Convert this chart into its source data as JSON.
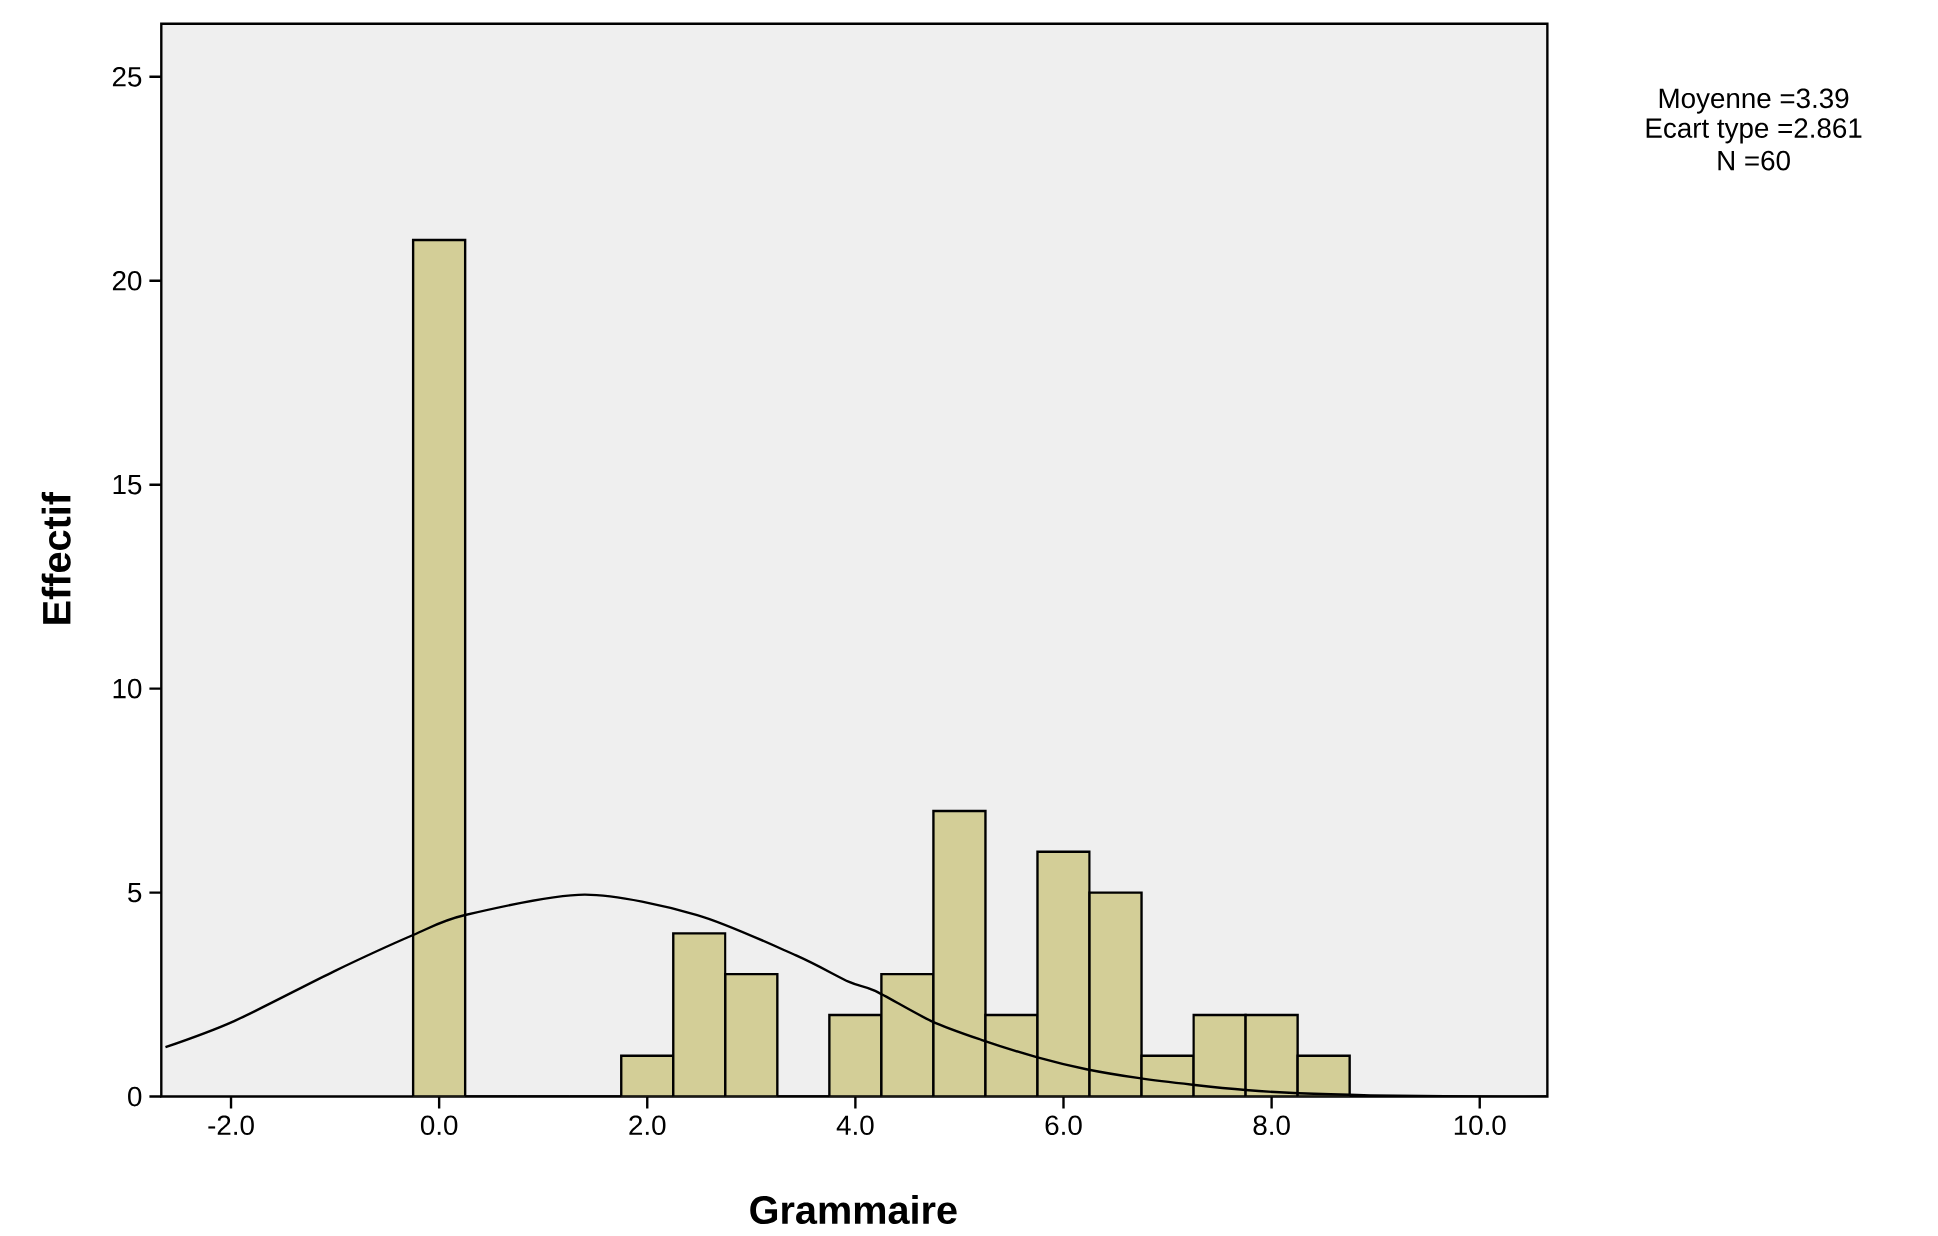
{
  "chart_data": {
    "type": "histogram",
    "xlabel": "Grammaire",
    "ylabel": "Effectif",
    "bins": [
      -0.25,
      0.25,
      0.75,
      1.25,
      1.75,
      2.25,
      2.75,
      3.25,
      3.75,
      4.25,
      4.75,
      5.25,
      5.75,
      6.25,
      6.75,
      7.25,
      7.75,
      8.25,
      8.75
    ],
    "values": [
      21,
      0,
      0,
      0,
      1,
      4,
      3,
      0,
      2,
      3,
      7,
      2,
      6,
      5,
      1,
      2,
      2,
      1
    ],
    "color": "#d3ce97",
    "series": [
      {
        "type": "line",
        "color": "#000000",
        "x": [
          -2.63,
          -1.97,
          -1.01,
          -0.25,
          0.25,
          1.4,
          2.48,
          3.43,
          3.94,
          4.19,
          4.73,
          5.21,
          5.75,
          6.22,
          6.73,
          7.24,
          7.75,
          8.26,
          8.95,
          9.9,
          10.64
        ],
        "values": [
          1.21,
          1.85,
          3.07,
          3.96,
          4.45,
          4.95,
          4.45,
          3.46,
          2.81,
          2.59,
          1.85,
          1.39,
          0.96,
          0.67,
          0.45,
          0.29,
          0.16,
          0.08,
          0.03,
          0,
          0
        ]
      }
    ],
    "xlim": [
      -2.67,
      10.65
    ],
    "ylim": [
      0,
      26.3
    ],
    "xticks": [
      {
        "value": -2,
        "label": "-2.0"
      },
      {
        "value": 0,
        "label": "0.0"
      },
      {
        "value": 2,
        "label": "2.0"
      },
      {
        "value": 4,
        "label": "4.0"
      },
      {
        "value": 6,
        "label": "6.0"
      },
      {
        "value": 8,
        "label": "8.0"
      },
      {
        "value": 10,
        "label": "10.0"
      }
    ],
    "yticks": [
      0,
      5,
      10,
      15,
      20,
      25
    ],
    "annotations": [
      "Moyenne =3.39",
      "Ecart type =2.861",
      "N =60"
    ]
  }
}
